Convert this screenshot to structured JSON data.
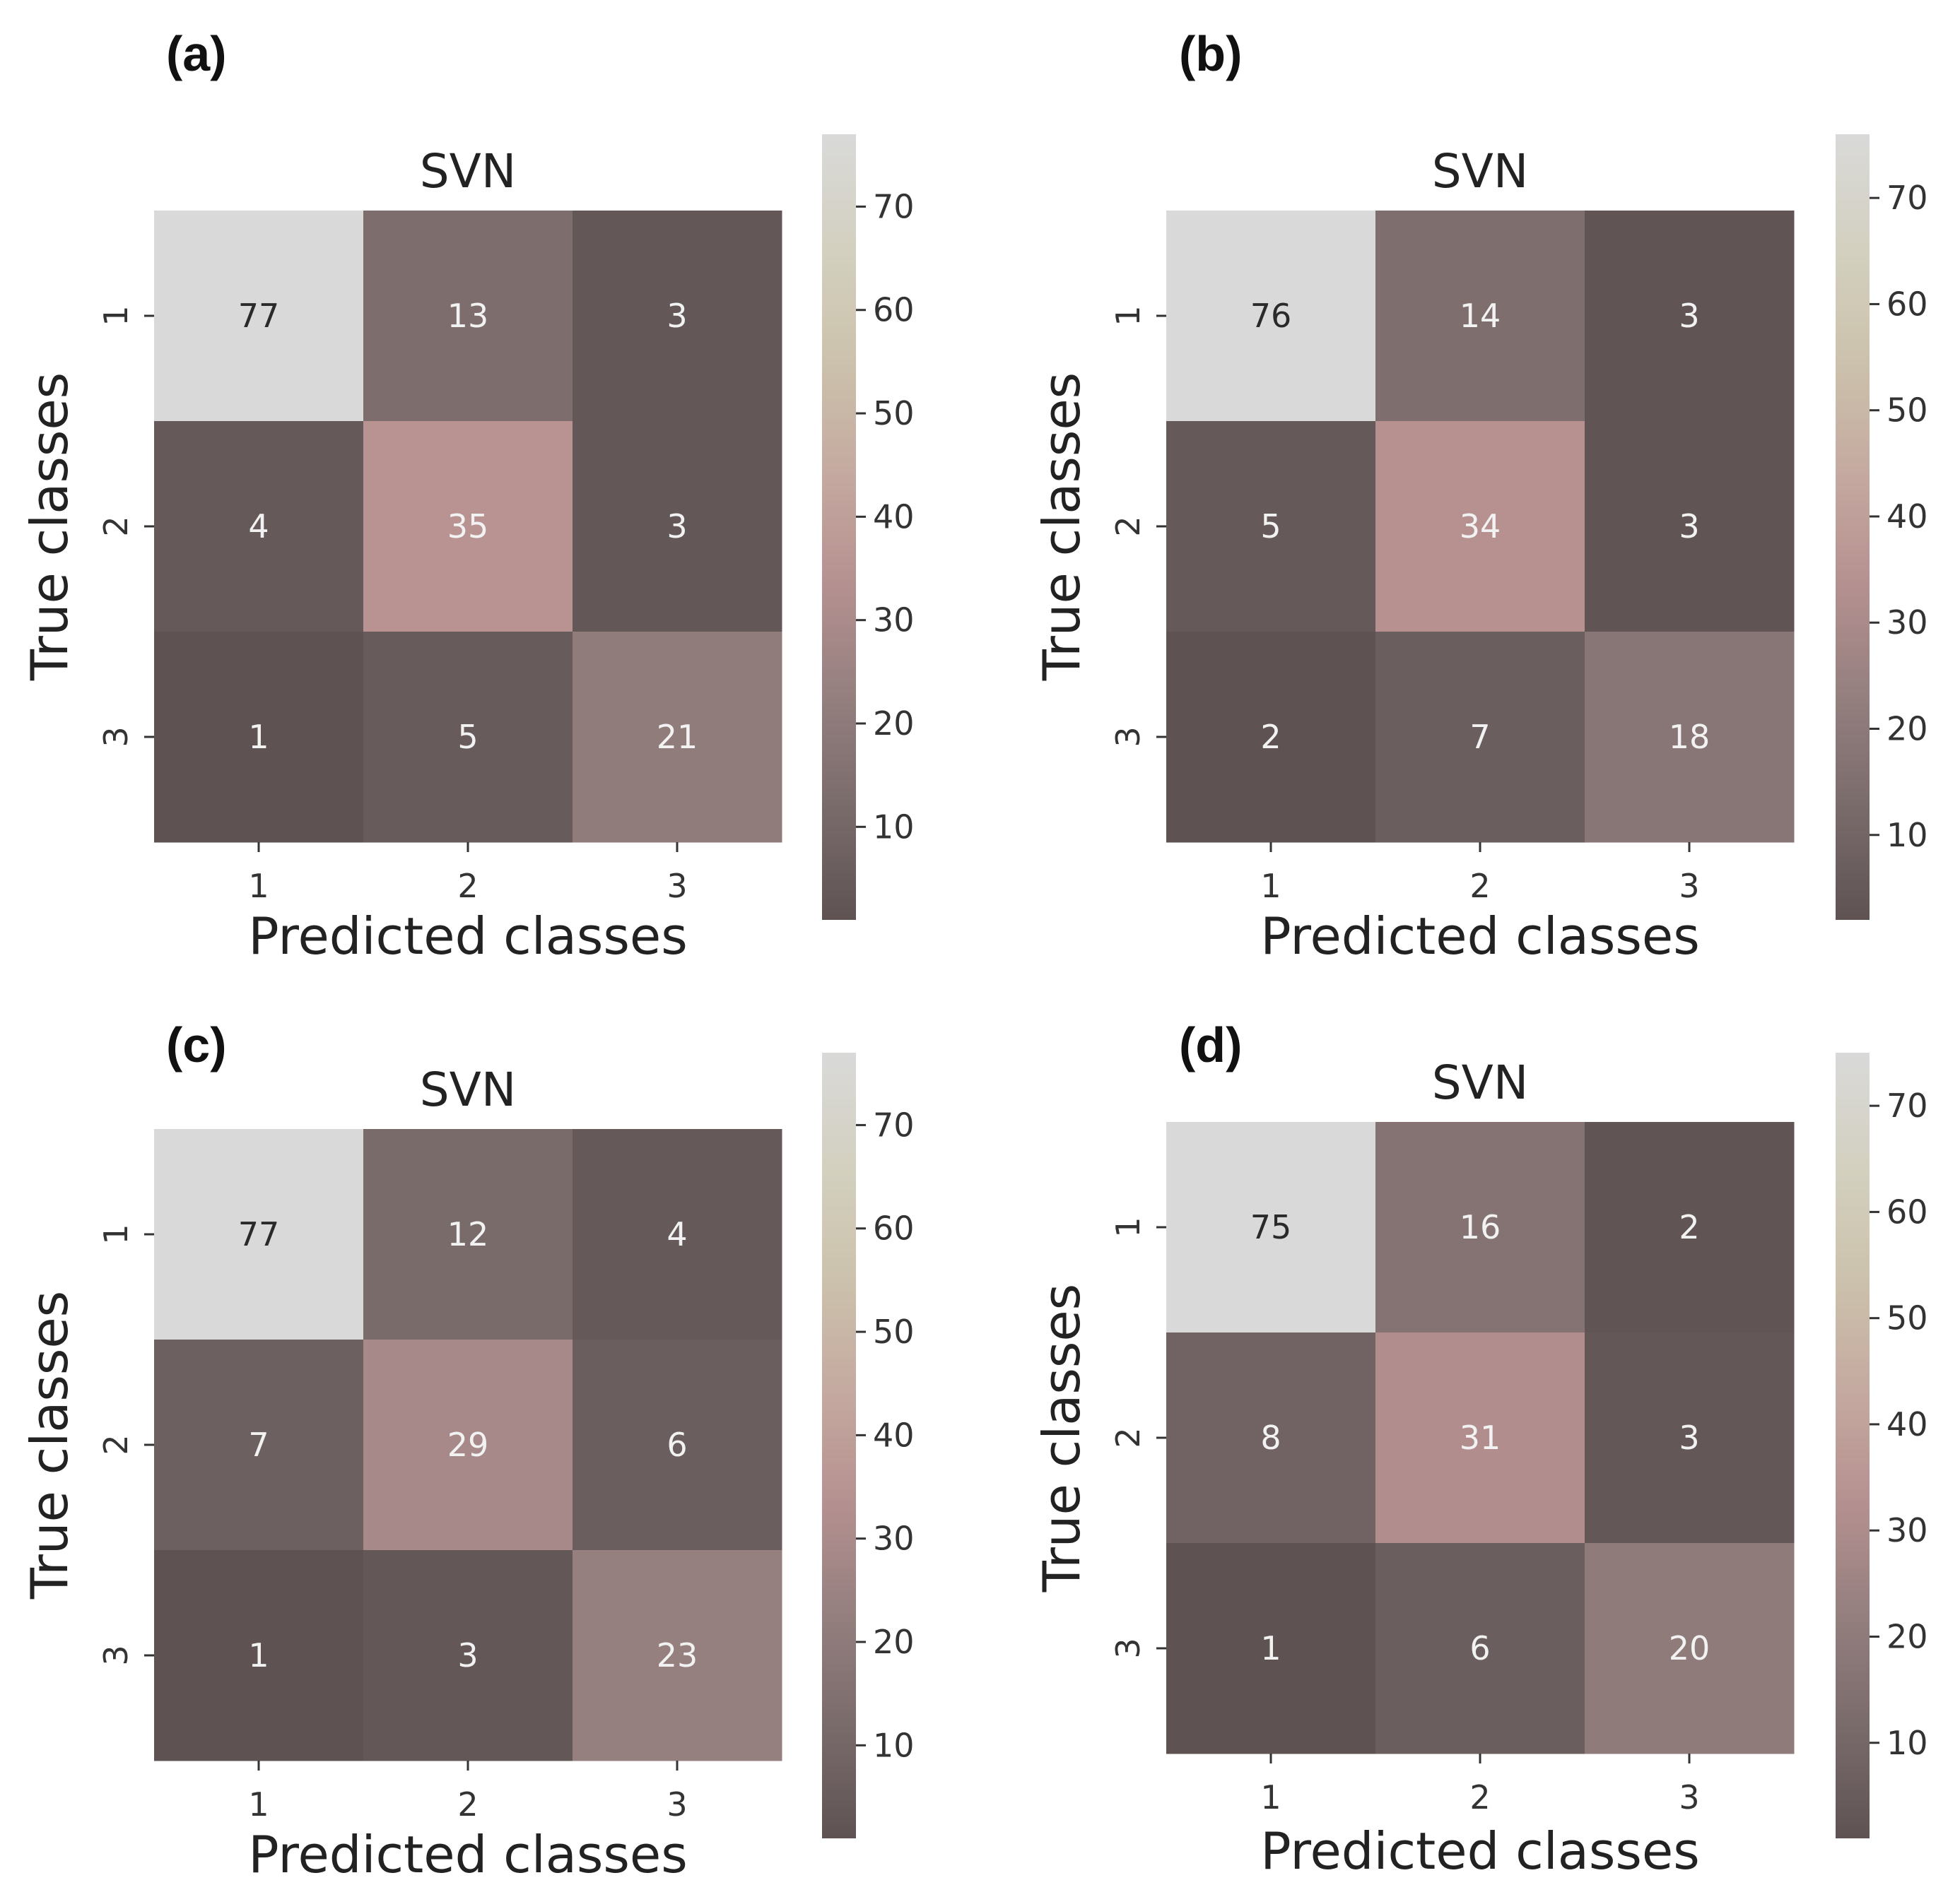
{
  "chart_data": [
    {
      "type": "heatmap",
      "panel": "(a)",
      "title": "SVN",
      "xlabel": "Predicted classes",
      "ylabel": "True classes",
      "x_tick_labels": [
        "1",
        "2",
        "3"
      ],
      "y_tick_labels": [
        "1",
        "2",
        "3"
      ],
      "matrix": [
        [
          77,
          13,
          3
        ],
        [
          4,
          35,
          3
        ],
        [
          1,
          5,
          21
        ]
      ],
      "colorbar": {
        "range": [
          1,
          77
        ],
        "ticks": [
          10,
          20,
          30,
          40,
          50,
          60,
          70
        ]
      }
    },
    {
      "type": "heatmap",
      "panel": "(b)",
      "title": "SVN",
      "xlabel": "Predicted classes",
      "ylabel": "True classes",
      "x_tick_labels": [
        "1",
        "2",
        "3"
      ],
      "y_tick_labels": [
        "1",
        "2",
        "3"
      ],
      "matrix": [
        [
          76,
          14,
          3
        ],
        [
          5,
          34,
          3
        ],
        [
          2,
          7,
          18
        ]
      ],
      "colorbar": {
        "range": [
          2,
          76
        ],
        "ticks": [
          10,
          20,
          30,
          40,
          50,
          60,
          70
        ]
      }
    },
    {
      "type": "heatmap",
      "panel": "(c)",
      "title": "SVN",
      "xlabel": "Predicted classes",
      "ylabel": "True classes",
      "x_tick_labels": [
        "1",
        "2",
        "3"
      ],
      "y_tick_labels": [
        "1",
        "2",
        "3"
      ],
      "matrix": [
        [
          77,
          12,
          4
        ],
        [
          7,
          29,
          6
        ],
        [
          1,
          3,
          23
        ]
      ],
      "colorbar": {
        "range": [
          1,
          77
        ],
        "ticks": [
          10,
          20,
          30,
          40,
          50,
          60,
          70
        ]
      }
    },
    {
      "type": "heatmap",
      "panel": "(d)",
      "title": "SVN",
      "xlabel": "Predicted classes",
      "ylabel": "True classes",
      "x_tick_labels": [
        "1",
        "2",
        "3"
      ],
      "y_tick_labels": [
        "1",
        "2",
        "3"
      ],
      "matrix": [
        [
          75,
          16,
          2
        ],
        [
          8,
          31,
          3
        ],
        [
          1,
          6,
          20
        ]
      ],
      "colorbar": {
        "range": [
          1,
          75
        ],
        "ticks": [
          10,
          20,
          30,
          40,
          50,
          60,
          70
        ]
      }
    }
  ],
  "colormap": [
    "#5e5252",
    "#7a6b6b",
    "#957f7f",
    "#b69090",
    "#c5aaa0",
    "#ccc2ac",
    "#d3d1c0",
    "#d9d9d9"
  ],
  "cell_text_colors": {
    "light": "#f2f2f2",
    "dark": "#2a2a2a"
  }
}
